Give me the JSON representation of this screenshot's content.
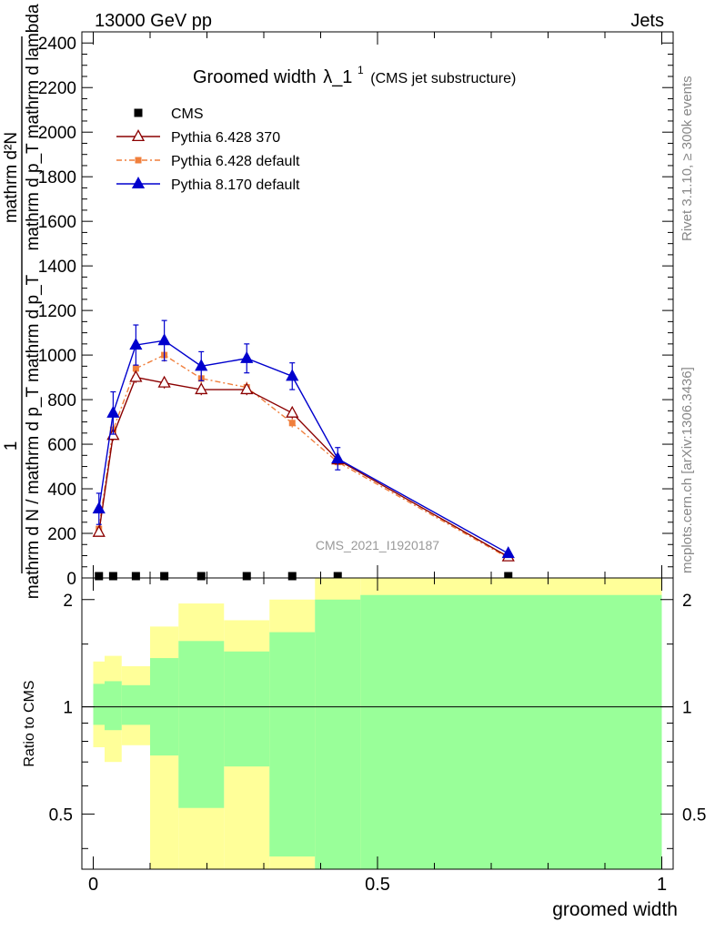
{
  "header": {
    "left": "13000 GeV pp",
    "right": "Jets"
  },
  "side_labels": {
    "rivet": "Rivet 3.1.10, ≥ 300k events",
    "mcplots": "mcplots.cern.ch [arXiv:1306.3436]"
  },
  "chart_data": [
    {
      "type": "line",
      "title_main": "Groomed width",
      "title_symbol": "λ_1",
      "title_sup": "1",
      "title_note": "(CMS jet substructure)",
      "watermark": "CMS_2021_I1920187",
      "ylabel_numerator": "1",
      "ylabel_denominator": "mathrm d N / mathrm d p_T mathrm d p_T",
      "ylabel_right_numerator": "mathrm d²N",
      "ylabel_right_denominator": "mathrm d p_T mathrm d lambda",
      "ylim": [
        0,
        2450
      ],
      "yticks": [
        0,
        200,
        400,
        600,
        800,
        1000,
        1200,
        1400,
        1600,
        1800,
        2000,
        2200,
        2400
      ],
      "legend_position": "top-left",
      "series": [
        {
          "name": "CMS",
          "color": "#000000",
          "marker": "square",
          "x": [
            0.01,
            0.035,
            0.075,
            0.125,
            0.19,
            0.27,
            0.35,
            0.43,
            0.73
          ],
          "y": [
            0,
            0,
            0,
            0,
            0,
            0,
            0,
            0,
            0
          ]
        },
        {
          "name": "Pythia 6.428 370",
          "color": "#8b0000",
          "marker": "open-triangle",
          "x": [
            0.01,
            0.035,
            0.075,
            0.125,
            0.19,
            0.27,
            0.35,
            0.43,
            0.73
          ],
          "y": [
            205,
            640,
            900,
            875,
            845,
            845,
            740,
            530,
            95
          ],
          "err": [
            15,
            25,
            25,
            25,
            25,
            25,
            25,
            20,
            8
          ]
        },
        {
          "name": "Pythia 6.428 default",
          "color": "#f07f3c",
          "marker": "square",
          "dashed": true,
          "x": [
            0.01,
            0.035,
            0.075,
            0.125,
            0.19,
            0.27,
            0.35,
            0.43,
            0.73
          ],
          "y": [
            220,
            665,
            940,
            1000,
            895,
            855,
            695,
            520,
            90
          ],
          "err": [
            15,
            25,
            30,
            30,
            30,
            25,
            20,
            20,
            8
          ]
        },
        {
          "name": "Pythia 8.170 default",
          "color": "#0000cd",
          "marker": "triangle",
          "x": [
            0.01,
            0.035,
            0.075,
            0.125,
            0.19,
            0.27,
            0.35,
            0.43,
            0.73
          ],
          "y": [
            310,
            740,
            1045,
            1065,
            950,
            985,
            905,
            535,
            110
          ],
          "err": [
            70,
            95,
            90,
            90,
            65,
            65,
            60,
            50,
            10
          ]
        }
      ]
    },
    {
      "type": "area",
      "ylabel": "Ratio to CMS",
      "xlabel": "groomed width",
      "xlim": [
        -0.02,
        1.02
      ],
      "ylim": [
        0.35,
        2.3
      ],
      "log_y": true,
      "yticks": [
        0.5,
        1,
        2
      ],
      "yticklabels": [
        "0.5",
        "1",
        "2"
      ],
      "xticks": [
        0,
        0.5,
        1
      ],
      "xticklabels": [
        "0",
        "0.5",
        "1"
      ],
      "reference_line": 1,
      "bins": [
        {
          "lo": 0.0,
          "hi": 0.02,
          "inner": [
            0.89,
            1.16
          ],
          "outer": [
            0.77,
            1.34
          ]
        },
        {
          "lo": 0.02,
          "hi": 0.05,
          "inner": [
            0.86,
            1.18
          ],
          "outer": [
            0.7,
            1.39
          ]
        },
        {
          "lo": 0.05,
          "hi": 0.1,
          "inner": [
            0.89,
            1.15
          ],
          "outer": [
            0.78,
            1.3
          ]
        },
        {
          "lo": 0.1,
          "hi": 0.15,
          "inner": [
            0.73,
            1.37
          ],
          "outer": [
            0.35,
            1.68
          ]
        },
        {
          "lo": 0.15,
          "hi": 0.23,
          "inner": [
            0.52,
            1.53
          ],
          "outer": [
            0.35,
            1.95
          ]
        },
        {
          "lo": 0.23,
          "hi": 0.31,
          "inner": [
            0.68,
            1.43
          ],
          "outer": [
            0.35,
            1.75
          ]
        },
        {
          "lo": 0.31,
          "hi": 0.39,
          "inner": [
            0.38,
            1.62
          ],
          "outer": [
            0.35,
            2.0
          ]
        },
        {
          "lo": 0.39,
          "hi": 0.47,
          "inner": [
            0.35,
            2.0
          ],
          "outer": [
            0.35,
            2.3
          ]
        },
        {
          "lo": 0.47,
          "hi": 1.0,
          "inner": [
            0.35,
            2.06
          ],
          "outer": [
            0.35,
            2.3
          ]
        }
      ],
      "colors": {
        "inner": "#99ff99",
        "outer": "#ffff99"
      }
    }
  ]
}
